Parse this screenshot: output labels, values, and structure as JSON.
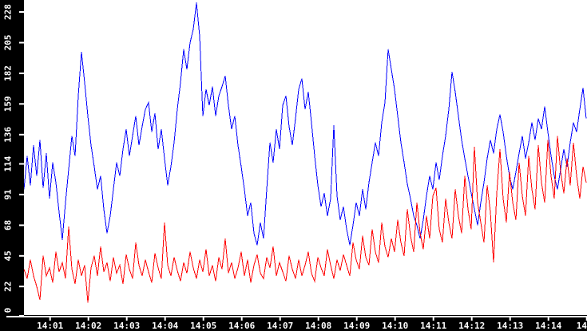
{
  "window": {
    "background_color": "#000000",
    "plot_background_color": "#ffffff",
    "axis_color": "#ffffff",
    "label_color": "#ffffff"
  },
  "chart_data": {
    "type": "line",
    "title": "",
    "xlabel": "",
    "ylabel": "",
    "grid": false,
    "legend": "none",
    "x_tick_labels": [
      "14:01",
      "14:02",
      "14:03",
      "14:04",
      "14:05",
      "14:06",
      "14:07",
      "14:08",
      "14:09",
      "14:10",
      "14:11",
      "14:12",
      "14:13",
      "14:14"
    ],
    "x_edge_partial_label": "14",
    "y_tick_labels": [
      "228",
      "205",
      "182",
      "159",
      "136",
      "114",
      "91",
      "68",
      "45",
      "22",
      "0"
    ],
    "y_tick_values": [
      228,
      205,
      182,
      159,
      136,
      114,
      91,
      68,
      45,
      22,
      0
    ],
    "ylim": [
      0,
      237
    ],
    "series": [
      {
        "name": "blue",
        "color": "#0000ff",
        "values": [
          95,
          120,
          98,
          128,
          105,
          132,
          96,
          122,
          88,
          115,
          100,
          78,
          57,
          85,
          110,
          135,
          120,
          165,
          198,
          175,
          150,
          128,
          112,
          95,
          105,
          80,
          62,
          75,
          95,
          115,
          105,
          125,
          140,
          120,
          135,
          150,
          128,
          142,
          155,
          160,
          138,
          152,
          125,
          140,
          118,
          98,
          112,
          130,
          155,
          175,
          200,
          185,
          205,
          215,
          235,
          210,
          150,
          170,
          158,
          172,
          150,
          165,
          172,
          180,
          158,
          140,
          150,
          128,
          112,
          95,
          75,
          85,
          62,
          53,
          70,
          58,
          95,
          130,
          115,
          140,
          125,
          158,
          165,
          142,
          128,
          148,
          170,
          178,
          155,
          168,
          145,
          120,
          98,
          82,
          92,
          75,
          88,
          143,
          90,
          72,
          82,
          65,
          53,
          68,
          85,
          75,
          95,
          80,
          100,
          115,
          130,
          120,
          145,
          160,
          200,
          185,
          170,
          150,
          130,
          115,
          99,
          88,
          75,
          68,
          58,
          72,
          90,
          105,
          95,
          115,
          102,
          120,
          135,
          155,
          183,
          168,
          150,
          132,
          118,
          105,
          92,
          80,
          68,
          85,
          100,
          118,
          132,
          122,
          140,
          151,
          138,
          120,
          105,
          95,
          108,
          122,
          135,
          118,
          130,
          145,
          132,
          148,
          140,
          157,
          138,
          120,
          105,
          95,
          110,
          125,
          112,
          130,
          145,
          138,
          155,
          171,
          148
        ]
      },
      {
        "name": "red",
        "color": "#ff0000",
        "values": [
          35,
          28,
          42,
          30,
          22,
          12,
          45,
          30,
          36,
          25,
          48,
          33,
          40,
          28,
          67,
          35,
          24,
          42,
          30,
          38,
          10,
          36,
          45,
          30,
          52,
          33,
          40,
          26,
          44,
          32,
          38,
          24,
          46,
          35,
          28,
          55,
          38,
          30,
          42,
          33,
          25,
          47,
          36,
          28,
          70,
          38,
          30,
          44,
          34,
          26,
          40,
          32,
          48,
          36,
          28,
          42,
          33,
          50,
          30,
          38,
          26,
          44,
          35,
          58,
          32,
          40,
          28,
          36,
          48,
          30,
          42,
          25,
          38,
          46,
          32,
          28,
          44,
          36,
          52,
          30,
          40,
          33,
          26,
          45,
          35,
          28,
          42,
          30,
          38,
          48,
          32,
          26,
          44,
          36,
          30,
          50,
          38,
          28,
          42,
          34,
          46,
          38,
          30,
          55,
          42,
          35,
          60,
          44,
          38,
          65,
          48,
          40,
          70,
          52,
          44,
          58,
          48,
          72,
          55,
          45,
          80,
          60,
          48,
          85,
          62,
          50,
          75,
          58,
          90,
          96,
          65,
          55,
          88,
          70,
          58,
          95,
          75,
          62,
          105,
          80,
          65,
          127,
          85,
          70,
          55,
          98,
          78,
          40,
          92,
          125,
          88,
          70,
          108,
          85,
          72,
          115,
          90,
          75,
          120,
          95,
          80,
          128,
          100,
          85,
          132,
          105,
          88,
          135,
          108,
          92,
          118,
          98,
          130,
          105,
          88,
          112,
          100
        ]
      }
    ]
  }
}
